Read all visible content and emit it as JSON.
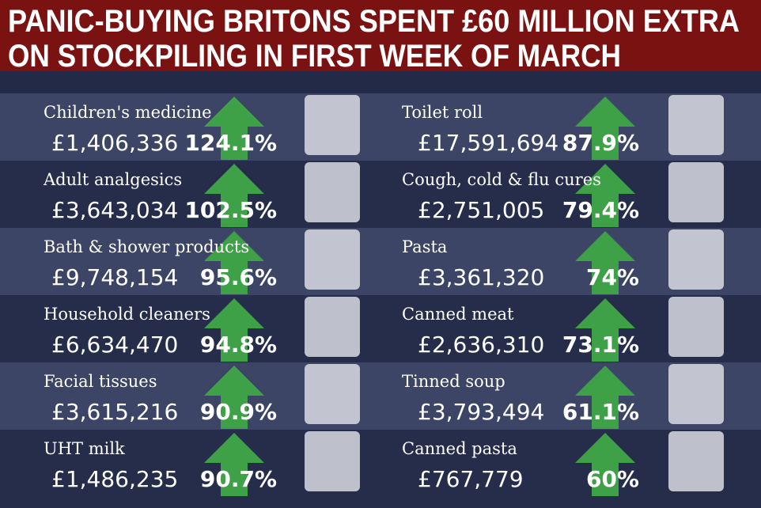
{
  "title": {
    "lines": [
      "PANIC-BUYING BRITONS SPENT £60 MILLION EXTRA",
      "ON STOCKPILING IN FIRST WEEK OF MARCH"
    ]
  },
  "items": {
    "left": [
      {
        "name": "Children's medicine",
        "amount": "£1,406,336",
        "change": "124.1%"
      },
      {
        "name": "Adult analgesics",
        "amount": "£3,643,034",
        "change": "102.5%"
      },
      {
        "name": "Bath & shower products",
        "amount": "£9,748,154",
        "change": "95.6%"
      },
      {
        "name": "Household cleaners",
        "amount": "£6,634,470",
        "change": "94.8%"
      },
      {
        "name": "Facial tissues",
        "amount": "£3,615,216",
        "change": "90.9%"
      },
      {
        "name": "UHT milk",
        "amount": "£1,486,235",
        "change": "90.7%"
      }
    ],
    "right": [
      {
        "name": "Toilet roll",
        "amount": "£17,591,694",
        "change": "87.9%"
      },
      {
        "name": "Cough, cold & flu cures",
        "amount": "£2,751,005",
        "change": "79.4%"
      },
      {
        "name": "Pasta",
        "amount": "£3,361,320",
        "change": "74%"
      },
      {
        "name": "Canned meat",
        "amount": "£2,636,310",
        "change": "73.1%"
      },
      {
        "name": "Tinned soup",
        "amount": "£3,793,494",
        "change": "61.1%"
      },
      {
        "name": "Canned pasta",
        "amount": "£767,779",
        "change": "60%"
      }
    ]
  }
}
